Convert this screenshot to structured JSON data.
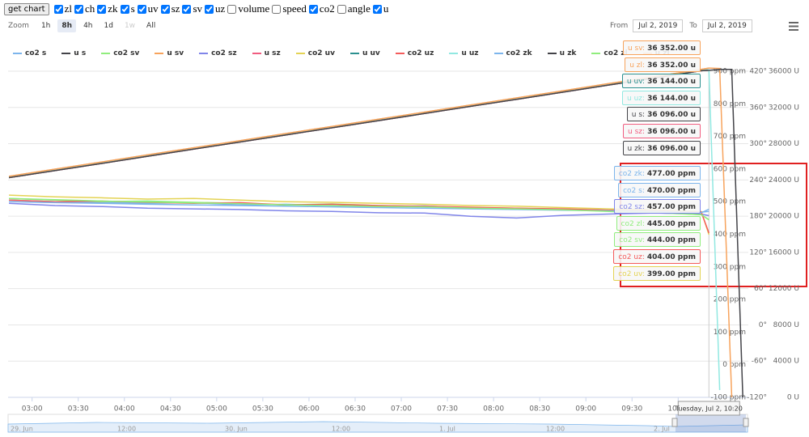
{
  "toolbar": {
    "button": "get chart",
    "checkboxes": [
      {
        "label": "zl",
        "checked": true
      },
      {
        "label": "ch",
        "checked": true
      },
      {
        "label": "zk",
        "checked": true
      },
      {
        "label": "s",
        "checked": true
      },
      {
        "label": "uv",
        "checked": true
      },
      {
        "label": "sz",
        "checked": true
      },
      {
        "label": "sv",
        "checked": true
      },
      {
        "label": "uz",
        "checked": true
      },
      {
        "label": "volume",
        "checked": false
      },
      {
        "label": "speed",
        "checked": false
      },
      {
        "label": "co2",
        "checked": true
      },
      {
        "label": "angle",
        "checked": false
      },
      {
        "label": "u",
        "checked": true
      }
    ]
  },
  "zoom": {
    "label": "Zoom",
    "buttons": [
      {
        "label": "1h",
        "state": "normal"
      },
      {
        "label": "8h",
        "state": "selected"
      },
      {
        "label": "4h",
        "state": "normal"
      },
      {
        "label": "1d",
        "state": "normal"
      },
      {
        "label": "1w",
        "state": "disabled"
      },
      {
        "label": "All",
        "state": "normal"
      }
    ]
  },
  "range": {
    "from_label": "From",
    "from": "Jul 2, 2019",
    "to_label": "To",
    "to": "Jul 2, 2019"
  },
  "navigator": {
    "labels": [
      "29. Jun",
      "12:00",
      "30. Jun",
      "12:00",
      "1. Jul",
      "12:00",
      "2. Jul"
    ]
  },
  "chart_data": {
    "type": "line",
    "grid": true,
    "x": [
      2.75,
      3.25,
      3.75,
      4.25,
      4.75,
      5.25,
      5.75,
      6.25,
      6.75,
      7.25,
      7.75,
      8.25,
      8.75,
      9.25,
      9.75,
      10.25,
      10.333,
      10.45,
      10.58,
      10.7
    ],
    "xlim": [
      2.74,
      10.76
    ],
    "xticks": [
      {
        "value": 3,
        "label": "03:00"
      },
      {
        "value": 3.5,
        "label": "03:30"
      },
      {
        "value": 4,
        "label": "04:00"
      },
      {
        "value": 4.5,
        "label": "04:30"
      },
      {
        "value": 5,
        "label": "05:00"
      },
      {
        "value": 5.5,
        "label": "05:30"
      },
      {
        "value": 6,
        "label": "06:00"
      },
      {
        "value": 6.5,
        "label": "06:30"
      },
      {
        "value": 7,
        "label": "07:00"
      },
      {
        "value": 7.5,
        "label": "07:30"
      },
      {
        "value": 8,
        "label": "08:00"
      },
      {
        "value": 8.5,
        "label": "08:30"
      },
      {
        "value": 9,
        "label": "09:00"
      },
      {
        "value": 9.5,
        "label": "09:30"
      },
      {
        "value": 10,
        "label": "10:00"
      }
    ],
    "ylim": [
      -100,
      900
    ],
    "yticks": [
      {
        "value": -100,
        "label": "-100 ppm"
      },
      {
        "value": 0,
        "label": "0 ppm"
      },
      {
        "value": 100,
        "label": "100 ppm"
      },
      {
        "value": 200,
        "label": "200 ppm"
      },
      {
        "value": 300,
        "label": "300 ppm"
      },
      {
        "value": 400,
        "label": "400 ppm"
      },
      {
        "value": 500,
        "label": "500 ppm"
      },
      {
        "value": 600,
        "label": "600 ppm"
      },
      {
        "value": 700,
        "label": "700 ppm"
      },
      {
        "value": 800,
        "label": "800 ppm"
      },
      {
        "value": 900,
        "label": "900 ppm"
      }
    ],
    "y2lim": [
      -120,
      420
    ],
    "y2ticks": [
      {
        "value": -120,
        "label": "-120°"
      },
      {
        "value": -60,
        "label": "-60°"
      },
      {
        "value": 0,
        "label": "0°"
      },
      {
        "value": 60,
        "label": "60°"
      },
      {
        "value": 120,
        "label": "120°"
      },
      {
        "value": 180,
        "label": "180°"
      },
      {
        "value": 240,
        "label": "240°"
      },
      {
        "value": 300,
        "label": "300°"
      },
      {
        "value": 360,
        "label": "360°"
      },
      {
        "value": 420,
        "label": "420°"
      }
    ],
    "y3lim": [
      0,
      36000
    ],
    "y3ticks": [
      {
        "value": 0,
        "label": "0 U"
      },
      {
        "value": 4000,
        "label": "4000 U"
      },
      {
        "value": 8000,
        "label": "8000 U"
      },
      {
        "value": 12000,
        "label": "12000 U"
      },
      {
        "value": 16000,
        "label": "16000 U"
      },
      {
        "value": 20000,
        "label": "20000 U"
      },
      {
        "value": 24000,
        "label": "24000 U"
      },
      {
        "value": 28000,
        "label": "28000 U"
      },
      {
        "value": 32000,
        "label": "32000 U"
      },
      {
        "value": 36000,
        "label": "36000 U"
      }
    ],
    "series": [
      {
        "name": "co2 s",
        "color": "#7cb5ec",
        "axis": "y",
        "values": [
          505,
          500,
          498,
          495,
          497,
          490,
          492,
          488,
          485,
          487,
          480,
          478,
          476,
          474,
          470,
          468,
          470,
          null,
          null,
          null
        ]
      },
      {
        "name": "u s",
        "color": "#434348",
        "axis": "y3",
        "values": [
          24250,
          25040,
          25820,
          26610,
          27400,
          28180,
          28970,
          29760,
          30540,
          31330,
          32120,
          32900,
          33690,
          34480,
          35260,
          36050,
          36096,
          null,
          null,
          null
        ]
      },
      {
        "name": "co2 sv",
        "color": "#90ed7d",
        "axis": "y",
        "values": [
          510,
          505,
          500,
          502,
          498,
          495,
          490,
          493,
          488,
          485,
          482,
          480,
          476,
          472,
          468,
          460,
          444,
          null,
          null,
          null
        ]
      },
      {
        "name": "u sv",
        "color": "#f7a35c",
        "axis": "y3",
        "values": [
          24400,
          25190,
          25970,
          26760,
          27550,
          28330,
          29120,
          29910,
          30690,
          31480,
          32270,
          33050,
          33840,
          34630,
          35410,
          36200,
          36352,
          36300,
          0,
          null
        ]
      },
      {
        "name": "co2 sz",
        "color": "#8085e9",
        "axis": "y",
        "values": [
          495,
          488,
          485,
          480,
          478,
          476,
          472,
          470,
          466,
          465,
          455,
          450,
          458,
          462,
          465,
          462,
          457,
          null,
          null,
          null
        ]
      },
      {
        "name": "u sz",
        "color": "#f15c80",
        "axis": "y3",
        "values": [
          24250,
          25040,
          25820,
          26610,
          27400,
          28180,
          28970,
          29760,
          30540,
          31330,
          32120,
          32900,
          33690,
          34480,
          35260,
          36050,
          36096,
          null,
          null,
          null
        ]
      },
      {
        "name": "co2 uv",
        "color": "#e4d354",
        "axis": "y",
        "values": [
          520,
          515,
          512,
          508,
          510,
          505,
          500,
          498,
          495,
          492,
          488,
          486,
          482,
          478,
          475,
          470,
          399,
          null,
          null,
          null
        ]
      },
      {
        "name": "u uv",
        "color": "#2b908f",
        "axis": "y3",
        "values": [
          24300,
          25090,
          25870,
          26660,
          27450,
          28230,
          29020,
          29810,
          30590,
          31380,
          32170,
          32950,
          33740,
          34530,
          35310,
          36100,
          36144,
          null,
          null,
          null
        ]
      },
      {
        "name": "co2 uz",
        "color": "#f45b5b",
        "axis": "y",
        "values": [
          505,
          500,
          502,
          498,
          495,
          497,
          490,
          492,
          488,
          486,
          483,
          480,
          478,
          474,
          472,
          468,
          404,
          null,
          null,
          null
        ]
      },
      {
        "name": "u uz",
        "color": "#91e8e1",
        "axis": "y3",
        "values": [
          24300,
          25090,
          25870,
          26660,
          27450,
          28230,
          29020,
          29810,
          30590,
          31380,
          32170,
          32950,
          33740,
          34530,
          35310,
          36100,
          36144,
          800,
          null,
          null
        ]
      },
      {
        "name": "co2 zk",
        "color": "#7cb5ec",
        "axis": "y",
        "values": [
          500,
          497,
          495,
          492,
          490,
          488,
          486,
          484,
          482,
          480,
          478,
          476,
          474,
          472,
          470,
          466,
          477,
          null,
          null,
          null
        ]
      },
      {
        "name": "u zk",
        "color": "#434348",
        "axis": "y3",
        "values": [
          24250,
          25040,
          25820,
          26610,
          27400,
          28180,
          28970,
          29760,
          30540,
          31330,
          32120,
          32900,
          33690,
          34480,
          35260,
          36050,
          36096,
          36200,
          36200,
          0
        ]
      },
      {
        "name": "co2 zl",
        "color": "#90ed7d",
        "axis": "y",
        "values": [
          510,
          506,
          502,
          499,
          496,
          494,
          490,
          488,
          485,
          484,
          480,
          478,
          475,
          470,
          466,
          460,
          445,
          null,
          null,
          null
        ]
      },
      {
        "name": "u zl",
        "color": "#f7a35c",
        "axis": "y3",
        "values": [
          24400,
          25190,
          25970,
          26760,
          27550,
          28330,
          29120,
          29910,
          30690,
          31480,
          32270,
          33050,
          33840,
          34630,
          35410,
          36200,
          36352,
          null,
          null,
          null
        ]
      }
    ],
    "crosshair": {
      "x": 10.333,
      "label": "Tuesday, Jul 2, 10:20"
    },
    "tooltips": [
      [
        {
          "label": "u sv:",
          "value": "36 352.00 u",
          "color": "#f7a35c"
        },
        {
          "label": "u zl:",
          "value": "36 352.00 u",
          "color": "#f7a35c"
        },
        {
          "label": "u uv:",
          "value": "36 144.00 u",
          "color": "#2b908f"
        },
        {
          "label": "u uz:",
          "value": "36 144.00 u",
          "color": "#91e8e1"
        },
        {
          "label": "u s:",
          "value": "36 096.00 u",
          "color": "#434348"
        },
        {
          "label": "u sz:",
          "value": "36 096.00 u",
          "color": "#f15c80"
        },
        {
          "label": "u zk:",
          "value": "36 096.00 u",
          "color": "#434348"
        }
      ],
      [
        {
          "label": "co2 zk:",
          "value": "477.00 ppm",
          "color": "#7cb5ec"
        },
        {
          "label": "co2 s:",
          "value": "470.00 ppm",
          "color": "#7cb5ec"
        },
        {
          "label": "co2 sz:",
          "value": "457.00 ppm",
          "color": "#8085e9"
        },
        {
          "label": "co2 zl:",
          "value": "445.00 ppm",
          "color": "#90ed7d"
        },
        {
          "label": "co2 sv:",
          "value": "444.00 ppm",
          "color": "#90ed7d"
        },
        {
          "label": "co2 uz:",
          "value": "404.00 ppm",
          "color": "#f45b5b"
        },
        {
          "label": "co2 uv:",
          "value": "399.00 ppm",
          "color": "#e4d354"
        }
      ]
    ]
  }
}
